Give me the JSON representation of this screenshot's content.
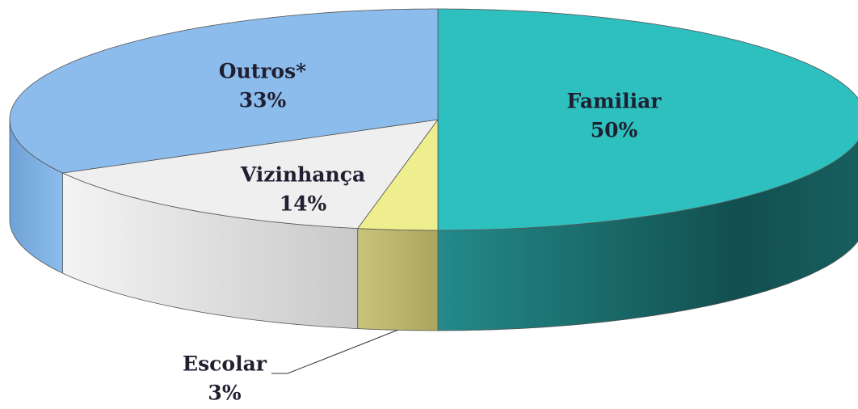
{
  "chart_data": {
    "type": "pie",
    "categories": [
      "Familiar",
      "Escolar",
      "Vizinhança",
      "Outros*"
    ],
    "values": [
      50,
      3,
      14,
      33
    ],
    "value_labels": [
      "50%",
      "3%",
      "14%",
      "33%"
    ],
    "colors": [
      "#2ebfbf",
      "#eeee8e",
      "#efefef",
      "#8cbcec"
    ]
  }
}
